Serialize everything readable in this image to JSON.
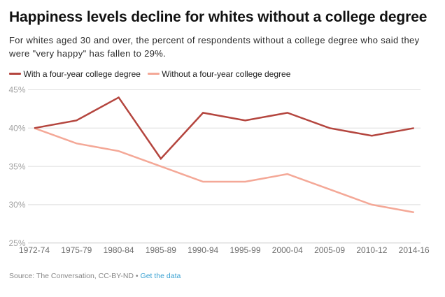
{
  "header": {
    "title": "Happiness levels decline for whites without a college degree",
    "subtitle": "For whites aged 30 and over, the percent of respondents without a college degree who said they were \"very happy\" has fallen to 29%."
  },
  "footer": {
    "source_text": "Source: The Conversation, CC-BY-ND",
    "separator": "•",
    "link_label": "Get the data",
    "link_color": "#39a1d2"
  },
  "chart_data": {
    "type": "line",
    "title": "Happiness levels decline for whites without a college degree",
    "categories": [
      "1972-74",
      "1975-79",
      "1980-84",
      "1985-89",
      "1990-94",
      "1995-99",
      "2000-04",
      "2005-09",
      "2010-12",
      "2014-16"
    ],
    "series": [
      {
        "name": "With a four-year college degree",
        "color": "#b4453e",
        "values": [
          40,
          41,
          44,
          36,
          42,
          41,
          42,
          40,
          39,
          40
        ]
      },
      {
        "name": "Without a four-year college degree",
        "color": "#f4a897",
        "values": [
          40,
          38,
          37,
          35,
          33,
          33,
          34,
          32,
          30,
          29
        ]
      }
    ],
    "ylabel": "",
    "xlabel": "",
    "ylim": [
      25,
      45
    ],
    "yticks": [
      25,
      30,
      35,
      40,
      45
    ],
    "ytick_labels": [
      "25%",
      "30%",
      "35%",
      "40%",
      "45%"
    ],
    "grid": "horizontal",
    "legend_position": "top",
    "colors": {
      "gridline": "#dedede",
      "baseline": "#c9c9c9",
      "ytick_text": "#a2a2a2",
      "xtick_text": "#6e6e6e"
    }
  }
}
